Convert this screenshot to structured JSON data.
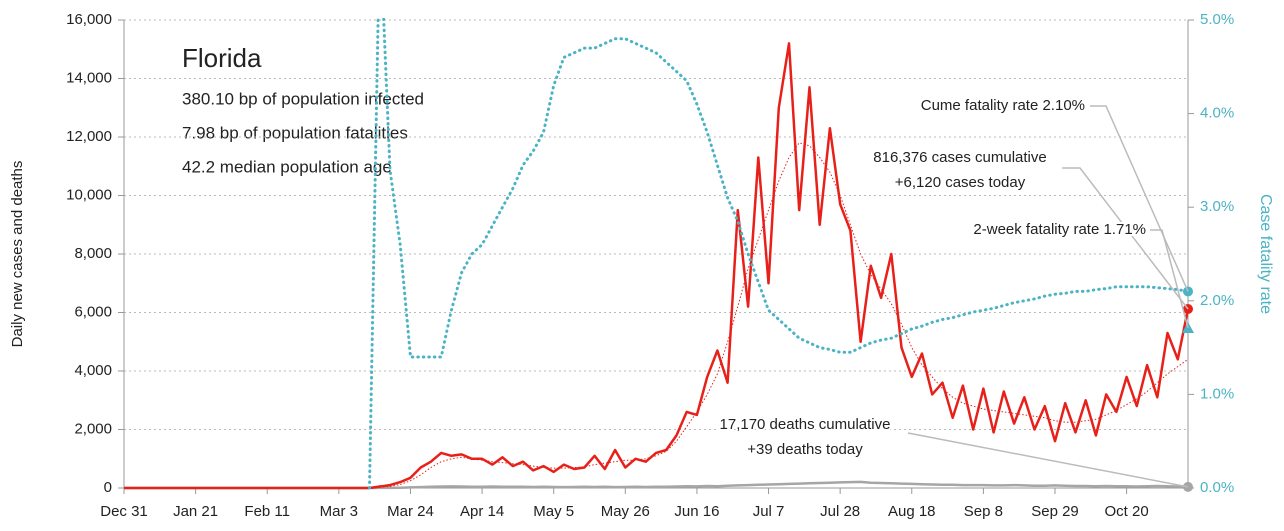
{
  "chart_data": {
    "type": "line",
    "title": "Florida",
    "info_lines": [
      "380.10 bp of population infected",
      "7.98 bp of population fatalities",
      "42.2 median population age"
    ],
    "ylabel": "Daily new cases and deaths",
    "y2label": "Case fatality rate",
    "categories": [
      "Dec 31",
      null,
      null,
      null,
      null,
      null,
      null,
      "Jan 21",
      null,
      null,
      null,
      null,
      null,
      null,
      "Feb 11",
      null,
      null,
      null,
      null,
      null,
      null,
      "Mar 3",
      null,
      null,
      null,
      null,
      null,
      null,
      "Mar 24",
      null,
      null,
      null,
      null,
      null,
      null,
      "Apr 14",
      null,
      null,
      null,
      null,
      null,
      null,
      "May 5",
      null,
      null,
      null,
      null,
      null,
      null,
      "May 26",
      null,
      null,
      null,
      null,
      null,
      null,
      "Jun 16",
      null,
      null,
      null,
      null,
      null,
      null,
      "Jul 7",
      null,
      null,
      null,
      null,
      null,
      null,
      "Jul 28",
      null,
      null,
      null,
      null,
      null,
      null,
      "Aug 18",
      null,
      null,
      null,
      null,
      null,
      null,
      "Sep 8",
      null,
      null,
      null,
      null,
      null,
      null,
      "Sep 29",
      null,
      null,
      null,
      null,
      null,
      null,
      "Oct 20",
      null,
      null,
      null,
      null,
      null,
      null
    ],
    "series": [
      {
        "color": "#a6a6a6",
        "line_style": "solid",
        "values": [
          0,
          0,
          0,
          0,
          0,
          0,
          0,
          0,
          0,
          0,
          0,
          0,
          0,
          0,
          0,
          0,
          0,
          0,
          0,
          0,
          0,
          0,
          0,
          0,
          0,
          2,
          5,
          10,
          20,
          30,
          40,
          50,
          55,
          50,
          45,
          45,
          50,
          40,
          45,
          40,
          35,
          40,
          35,
          30,
          35,
          40,
          35,
          40,
          30,
          35,
          40,
          35,
          40,
          45,
          50,
          60,
          55,
          70,
          60,
          80,
          90,
          100,
          110,
          120,
          130,
          140,
          150,
          160,
          170,
          180,
          190,
          200,
          210,
          180,
          170,
          160,
          150,
          140,
          130,
          120,
          110,
          110,
          100,
          100,
          100,
          90,
          90,
          100,
          90,
          80,
          80,
          90,
          80,
          70,
          70,
          60,
          70,
          60,
          60,
          50,
          60,
          70,
          60,
          50,
          39
        ]
      },
      {
        "color": "#e8201a",
        "line_style": "dotted-thin",
        "values": [
          0,
          0,
          0,
          0,
          0,
          0,
          0,
          0,
          0,
          0,
          0,
          0,
          0,
          0,
          0,
          0,
          0,
          0,
          0,
          0,
          0,
          0,
          0,
          0,
          0,
          20,
          50,
          120,
          250,
          450,
          700,
          900,
          1000,
          1050,
          1000,
          950,
          900,
          870,
          830,
          800,
          750,
          700,
          680,
          680,
          700,
          720,
          800,
          850,
          900,
          950,
          950,
          1000,
          1100,
          1250,
          1600,
          2100,
          2600,
          3200,
          3900,
          5000,
          6200,
          7500,
          8500,
          9500,
          10500,
          11300,
          11800,
          11700,
          11300,
          10800,
          10000,
          9000,
          8000,
          7300,
          6800,
          6300,
          5600,
          4800,
          4200,
          3800,
          3400,
          3100,
          2900,
          2800,
          2700,
          2650,
          2600,
          2550,
          2500,
          2450,
          2400,
          2300,
          2250,
          2250,
          2300,
          2350,
          2500,
          2650,
          2850,
          3050,
          3300,
          3600,
          3900,
          4150,
          4400
        ]
      },
      {
        "color": "#e8201a",
        "line_style": "solid",
        "values": [
          0,
          0,
          0,
          0,
          0,
          0,
          0,
          0,
          0,
          0,
          0,
          0,
          0,
          0,
          0,
          0,
          0,
          0,
          0,
          0,
          0,
          0,
          0,
          0,
          0,
          50,
          100,
          200,
          350,
          700,
          900,
          1200,
          1100,
          1150,
          1000,
          1000,
          800,
          1050,
          750,
          900,
          600,
          750,
          550,
          800,
          650,
          700,
          1100,
          650,
          1300,
          700,
          1000,
          900,
          1200,
          1300,
          1800,
          2600,
          2500,
          3800,
          4700,
          3600,
          9500,
          6200,
          11300,
          7000,
          13000,
          15200,
          9500,
          13700,
          9000,
          12300,
          9700,
          8800,
          5000,
          7600,
          6500,
          8000,
          4800,
          3800,
          4600,
          3200,
          3600,
          2400,
          3500,
          2000,
          3400,
          1900,
          3300,
          2200,
          3100,
          2000,
          2800,
          1600,
          2900,
          1900,
          3000,
          1800,
          3200,
          2600,
          3800,
          2800,
          4200,
          3100,
          5300,
          4400,
          6120
        ]
      },
      {
        "color": "#4bb3c4",
        "line_style": "dotted",
        "axis": "y2",
        "values": [
          null,
          null,
          null,
          null,
          null,
          null,
          null,
          null,
          null,
          null,
          null,
          null,
          null,
          null,
          null,
          null,
          null,
          null,
          null,
          null,
          null,
          null,
          null,
          null,
          0,
          6.0,
          3.4,
          2.6,
          1.4,
          1.4,
          1.4,
          1.4,
          1.9,
          2.3,
          2.5,
          2.6,
          2.8,
          3.0,
          3.2,
          3.45,
          3.6,
          3.8,
          4.3,
          4.6,
          4.65,
          4.7,
          4.7,
          4.75,
          4.8,
          4.8,
          4.75,
          4.7,
          4.65,
          4.55,
          4.45,
          4.35,
          4.1,
          3.8,
          3.45,
          3.1,
          2.85,
          2.5,
          2.2,
          1.9,
          1.8,
          1.7,
          1.6,
          1.55,
          1.5,
          1.48,
          1.45,
          1.45,
          1.5,
          1.55,
          1.58,
          1.6,
          1.65,
          1.7,
          1.73,
          1.77,
          1.8,
          1.82,
          1.85,
          1.88,
          1.9,
          1.92,
          1.95,
          1.98,
          2.0,
          2.02,
          2.05,
          2.07,
          2.08,
          2.1,
          2.1,
          2.12,
          2.13,
          2.15,
          2.15,
          2.15,
          2.15,
          2.14,
          2.13,
          2.12,
          2.1
        ]
      }
    ],
    "annotations": [
      {
        "lines": [
          "Cume fatality rate 2.10%"
        ]
      },
      {
        "lines": [
          "816,376 cases cumulative",
          "+6,120 cases today"
        ]
      },
      {
        "lines": [
          "2-week fatality rate 1.71%"
        ],
        "value": 1.71
      },
      {
        "lines": [
          "17,170 deaths cumulative",
          "+39 deaths today"
        ]
      }
    ],
    "ylim": [
      0,
      16000
    ],
    "yticks": [
      0,
      {
        "value": 2000,
        "label": "2,000"
      },
      {
        "value": 4000,
        "label": "4,000"
      },
      {
        "value": 6000,
        "label": "6,000"
      },
      {
        "value": 8000,
        "label": "8,000"
      },
      {
        "value": 10000,
        "label": "10,000"
      },
      {
        "value": 12000,
        "label": "12,000"
      },
      {
        "value": 14000,
        "label": "14,000"
      },
      {
        "value": 16000,
        "label": "16,000"
      }
    ],
    "y2lim": [
      0,
      5
    ],
    "y2ticks": [
      {
        "value": 0,
        "label": "0.0%"
      },
      {
        "value": 1,
        "label": "1.0%"
      },
      {
        "value": 2,
        "label": "2.0%"
      },
      {
        "value": 3,
        "label": "3.0%"
      },
      {
        "value": 4,
        "label": "4.0%"
      },
      {
        "value": 5,
        "label": "5.0%"
      }
    ],
    "y2color": "#4bb3c4",
    "grid": true
  }
}
